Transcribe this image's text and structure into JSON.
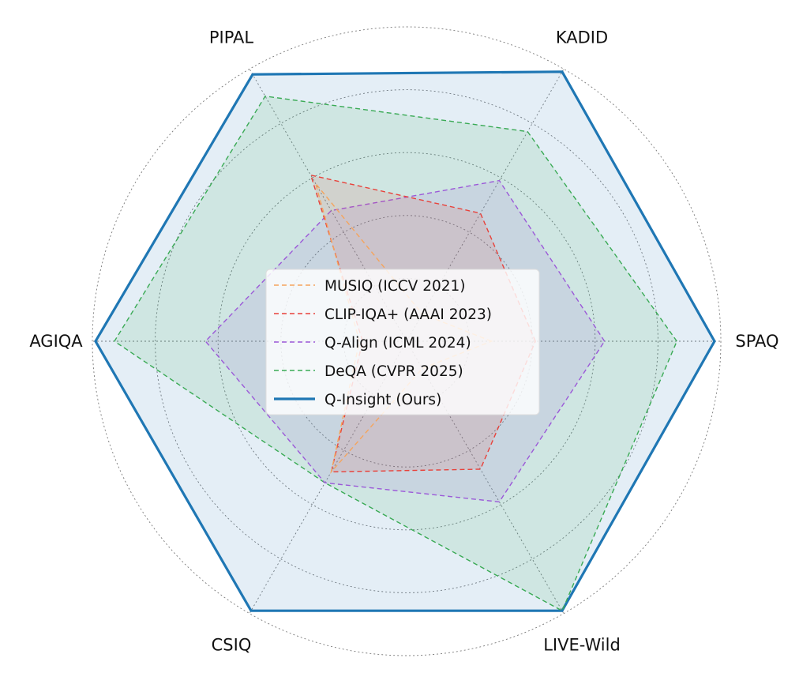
{
  "chart_data": {
    "type": "radar",
    "axes": [
      "SPAQ",
      "KADID",
      "PIPAL",
      "AGIQA",
      "CSIQ",
      "LIVE-Wild"
    ],
    "rlim": [
      0,
      1
    ],
    "grid": "on",
    "legend_position": "center",
    "series": [
      {
        "name": "MUSIQ (ICCV 2021)",
        "color": "#f5a45c",
        "style": "dashed",
        "fill": false,
        "values": [
          0.27,
          0.1,
          0.58,
          0.15,
          0.48,
          0.1
        ]
      },
      {
        "name": "CLIP-IQA+ (AAAI 2023)",
        "color": "#e8413a",
        "style": "dashed",
        "fill": true,
        "values": [
          0.41,
          0.47,
          0.61,
          0.14,
          0.48,
          0.47
        ]
      },
      {
        "name": "Q-Align (ICML 2024)",
        "color": "#9b59d8",
        "style": "dashed",
        "fill": true,
        "values": [
          0.63,
          0.59,
          0.48,
          0.64,
          0.52,
          0.59
        ]
      },
      {
        "name": "DeQA (CVPR 2025)",
        "color": "#3aaa55",
        "style": "dashed",
        "fill": true,
        "values": [
          0.86,
          0.77,
          0.9,
          0.93,
          0.52,
          0.99
        ]
      },
      {
        "name": "Q-Insight (Ours)",
        "color": "#1f77b4",
        "style": "solid",
        "fill": true,
        "values": [
          0.98,
          0.99,
          0.98,
          0.99,
          0.99,
          0.99
        ]
      }
    ]
  }
}
